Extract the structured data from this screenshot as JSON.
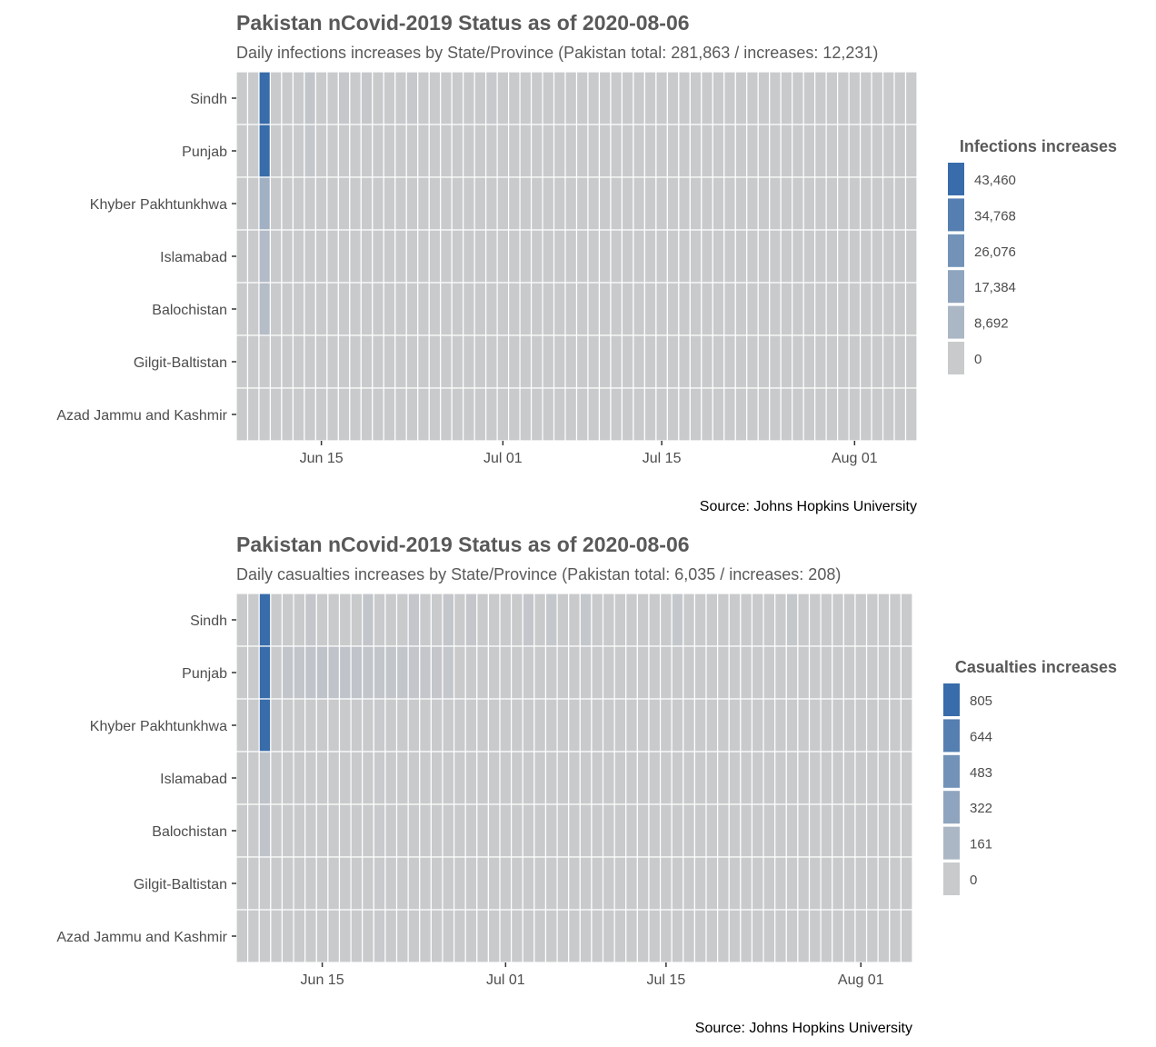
{
  "chart_data": [
    {
      "type": "heatmap",
      "title": "Pakistan nCovid-2019 Status as of 2020-08-06",
      "subtitle": "Daily infections increases by State/Province (Pakistan total: 281,863 / increases: 12,231)",
      "caption": "Source: Johns Hopkins University",
      "xlabel": "",
      "ylabel": "",
      "x_range": [
        "2020-06-08",
        "2020-08-06"
      ],
      "x_ticks": [
        {
          "date": "2020-06-15",
          "label": "Jun 15"
        },
        {
          "date": "2020-07-01",
          "label": "Jul 01"
        },
        {
          "date": "2020-07-15",
          "label": "Jul 15"
        },
        {
          "date": "2020-08-01",
          "label": "Aug 01"
        }
      ],
      "categories": [
        "Sindh",
        "Punjab",
        "Khyber Pakhtunkhwa",
        "Islamabad",
        "Balochistan",
        "Gilgit-Baltistan",
        "Azad Jammu and Kashmir"
      ],
      "legend": {
        "title": "Infections increases",
        "position": "right",
        "breaks": [
          "43,460",
          "34,768",
          "26,076",
          "17,384",
          "8,692",
          "0"
        ],
        "max": 43460
      },
      "series": [
        {
          "name": "Sindh",
          "values": [
            {
              "date": "2020-06-08",
              "value": 0
            },
            {
              "date": "2020-06-09",
              "value": 0
            },
            {
              "date": "2020-06-10",
              "value": 43460
            },
            {
              "date": "2020-06-14",
              "value": 2000
            },
            {
              "date": "2020-06-17",
              "value": 1200
            },
            {
              "date": "2020-06-19",
              "value": 1200
            },
            {
              "date": "2020-06-23",
              "value": 1000
            },
            {
              "date": "2020-06-30",
              "value": 500
            }
          ]
        },
        {
          "name": "Punjab",
          "values": [
            {
              "date": "2020-06-10",
              "value": 43460
            },
            {
              "date": "2020-06-14",
              "value": 1500
            }
          ]
        },
        {
          "name": "Khyber Pakhtunkhwa",
          "values": [
            {
              "date": "2020-06-10",
              "value": 12000
            }
          ]
        },
        {
          "name": "Islamabad",
          "values": [
            {
              "date": "2020-06-10",
              "value": 7000
            }
          ]
        },
        {
          "name": "Balochistan",
          "values": [
            {
              "date": "2020-06-10",
              "value": 6000
            }
          ]
        }
      ]
    },
    {
      "type": "heatmap",
      "title": "Pakistan nCovid-2019 Status as of 2020-08-06",
      "subtitle": "Daily casualties increases by State/Province (Pakistan total: 6,035 / increases: 208)",
      "caption": "Source: Johns Hopkins University",
      "xlabel": "",
      "ylabel": "",
      "x_range": [
        "2020-06-08",
        "2020-08-05"
      ],
      "x_ticks": [
        {
          "date": "2020-06-15",
          "label": "Jun 15"
        },
        {
          "date": "2020-07-01",
          "label": "Jul 01"
        },
        {
          "date": "2020-07-15",
          "label": "Jul 15"
        },
        {
          "date": "2020-08-01",
          "label": "Aug 01"
        }
      ],
      "categories": [
        "Sindh",
        "Punjab",
        "Khyber Pakhtunkhwa",
        "Islamabad",
        "Balochistan",
        "Gilgit-Baltistan",
        "Azad Jammu and Kashmir"
      ],
      "legend": {
        "title": "Casualties increases",
        "position": "right",
        "breaks": [
          "805",
          "644",
          "483",
          "322",
          "161",
          "0"
        ],
        "max": 805
      },
      "series": [
        {
          "name": "Sindh",
          "values": [
            {
              "date": "2020-06-10",
              "value": 805
            },
            {
              "date": "2020-06-14",
              "value": 30
            },
            {
              "date": "2020-06-19",
              "value": 40
            },
            {
              "date": "2020-06-23",
              "value": 30
            },
            {
              "date": "2020-06-26",
              "value": 35
            },
            {
              "date": "2020-06-28",
              "value": 30
            },
            {
              "date": "2020-07-03",
              "value": 30
            },
            {
              "date": "2020-07-05",
              "value": 25
            },
            {
              "date": "2020-07-08",
              "value": 25
            },
            {
              "date": "2020-07-16",
              "value": 25
            },
            {
              "date": "2020-07-26",
              "value": 20
            }
          ]
        },
        {
          "name": "Punjab",
          "values": [
            {
              "date": "2020-06-10",
              "value": 805
            },
            {
              "date": "2020-06-12",
              "value": 40
            },
            {
              "date": "2020-06-13",
              "value": 40
            },
            {
              "date": "2020-06-14",
              "value": 50
            },
            {
              "date": "2020-06-15",
              "value": 60
            },
            {
              "date": "2020-06-16",
              "value": 50
            },
            {
              "date": "2020-06-17",
              "value": 50
            },
            {
              "date": "2020-06-18",
              "value": 50
            },
            {
              "date": "2020-06-19",
              "value": 40
            },
            {
              "date": "2020-06-20",
              "value": 40
            },
            {
              "date": "2020-06-21",
              "value": 40
            },
            {
              "date": "2020-06-22",
              "value": 40
            },
            {
              "date": "2020-06-23",
              "value": 30
            },
            {
              "date": "2020-06-24",
              "value": 30
            },
            {
              "date": "2020-06-25",
              "value": 30
            },
            {
              "date": "2020-06-26",
              "value": 25
            }
          ]
        },
        {
          "name": "Khyber Pakhtunkhwa",
          "values": [
            {
              "date": "2020-06-10",
              "value": 805
            }
          ]
        },
        {
          "name": "Islamabad",
          "values": [
            {
              "date": "2020-06-10",
              "value": 60
            }
          ]
        },
        {
          "name": "Balochistan",
          "values": [
            {
              "date": "2020-06-10",
              "value": 50
            }
          ]
        }
      ]
    }
  ]
}
